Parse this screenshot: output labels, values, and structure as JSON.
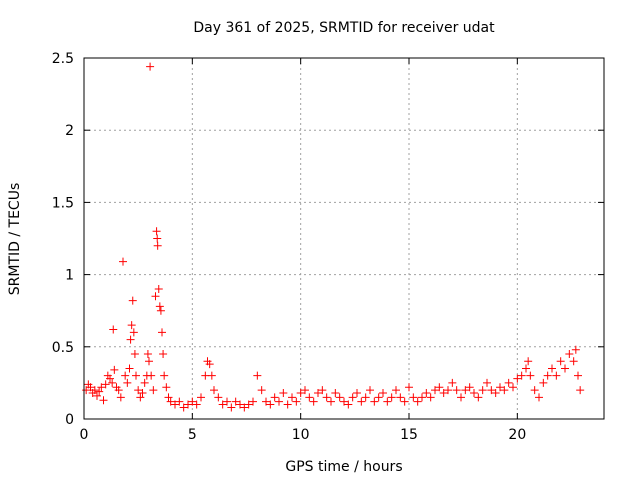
{
  "chart_data": {
    "type": "scatter",
    "title": "Day 361 of 2025, SRMTID for receiver udat",
    "xlabel": "GPS time / hours",
    "ylabel": "SRMTID / TECUs",
    "xlim": [
      0,
      24
    ],
    "ylim": [
      0,
      2.5
    ],
    "xticks": [
      0,
      5,
      10,
      15,
      20
    ],
    "xtick_labels": [
      "0",
      "5",
      "10",
      "15",
      "20"
    ],
    "yticks": [
      0,
      0.5,
      1,
      1.5,
      2,
      2.5
    ],
    "ytick_labels": [
      "0",
      "0.5",
      "1",
      "1.5",
      "2",
      "2.5"
    ],
    "grid": true,
    "marker": "plus",
    "color": "#ff0000",
    "series": [
      {
        "name": "SRMTID",
        "points": [
          [
            0.1,
            0.2
          ],
          [
            0.2,
            0.24
          ],
          [
            0.3,
            0.22
          ],
          [
            0.4,
            0.18
          ],
          [
            0.5,
            0.2
          ],
          [
            0.6,
            0.16
          ],
          [
            0.7,
            0.19
          ],
          [
            0.8,
            0.22
          ],
          [
            0.9,
            0.13
          ],
          [
            1.0,
            0.24
          ],
          [
            1.1,
            0.3
          ],
          [
            1.2,
            0.28
          ],
          [
            1.3,
            0.25
          ],
          [
            1.35,
            0.62
          ],
          [
            1.4,
            0.34
          ],
          [
            1.5,
            0.22
          ],
          [
            1.6,
            0.2
          ],
          [
            1.7,
            0.15
          ],
          [
            1.8,
            1.09
          ],
          [
            1.9,
            0.3
          ],
          [
            2.0,
            0.25
          ],
          [
            2.1,
            0.35
          ],
          [
            2.15,
            0.55
          ],
          [
            2.2,
            0.65
          ],
          [
            2.25,
            0.82
          ],
          [
            2.3,
            0.6
          ],
          [
            2.35,
            0.45
          ],
          [
            2.4,
            0.3
          ],
          [
            2.5,
            0.2
          ],
          [
            2.6,
            0.15
          ],
          [
            2.7,
            0.18
          ],
          [
            2.8,
            0.25
          ],
          [
            2.9,
            0.3
          ],
          [
            2.95,
            0.45
          ],
          [
            3.0,
            0.4
          ],
          [
            3.05,
            2.44
          ],
          [
            3.1,
            0.3
          ],
          [
            3.2,
            0.2
          ],
          [
            3.3,
            0.85
          ],
          [
            3.35,
            1.3
          ],
          [
            3.38,
            1.25
          ],
          [
            3.4,
            1.2
          ],
          [
            3.45,
            0.9
          ],
          [
            3.5,
            0.78
          ],
          [
            3.55,
            0.75
          ],
          [
            3.6,
            0.6
          ],
          [
            3.65,
            0.45
          ],
          [
            3.7,
            0.3
          ],
          [
            3.8,
            0.22
          ],
          [
            3.9,
            0.15
          ],
          [
            4.0,
            0.12
          ],
          [
            4.2,
            0.1
          ],
          [
            4.4,
            0.12
          ],
          [
            4.6,
            0.08
          ],
          [
            4.8,
            0.1
          ],
          [
            5.0,
            0.12
          ],
          [
            5.2,
            0.1
          ],
          [
            5.4,
            0.15
          ],
          [
            5.6,
            0.3
          ],
          [
            5.7,
            0.4
          ],
          [
            5.8,
            0.38
          ],
          [
            5.9,
            0.3
          ],
          [
            6.0,
            0.2
          ],
          [
            6.2,
            0.15
          ],
          [
            6.4,
            0.1
          ],
          [
            6.6,
            0.12
          ],
          [
            6.8,
            0.08
          ],
          [
            7.0,
            0.12
          ],
          [
            7.2,
            0.1
          ],
          [
            7.4,
            0.08
          ],
          [
            7.6,
            0.1
          ],
          [
            7.8,
            0.12
          ],
          [
            8.0,
            0.3
          ],
          [
            8.2,
            0.2
          ],
          [
            8.4,
            0.12
          ],
          [
            8.6,
            0.1
          ],
          [
            8.8,
            0.15
          ],
          [
            9.0,
            0.12
          ],
          [
            9.2,
            0.18
          ],
          [
            9.4,
            0.1
          ],
          [
            9.6,
            0.15
          ],
          [
            9.8,
            0.12
          ],
          [
            10.0,
            0.18
          ],
          [
            10.2,
            0.2
          ],
          [
            10.4,
            0.15
          ],
          [
            10.6,
            0.12
          ],
          [
            10.8,
            0.18
          ],
          [
            11.0,
            0.2
          ],
          [
            11.2,
            0.15
          ],
          [
            11.4,
            0.12
          ],
          [
            11.6,
            0.18
          ],
          [
            11.8,
            0.15
          ],
          [
            12.0,
            0.12
          ],
          [
            12.2,
            0.1
          ],
          [
            12.4,
            0.15
          ],
          [
            12.6,
            0.18
          ],
          [
            12.8,
            0.12
          ],
          [
            13.0,
            0.15
          ],
          [
            13.2,
            0.2
          ],
          [
            13.4,
            0.12
          ],
          [
            13.6,
            0.15
          ],
          [
            13.8,
            0.18
          ],
          [
            14.0,
            0.12
          ],
          [
            14.2,
            0.15
          ],
          [
            14.4,
            0.2
          ],
          [
            14.6,
            0.15
          ],
          [
            14.8,
            0.12
          ],
          [
            15.0,
            0.22
          ],
          [
            15.2,
            0.15
          ],
          [
            15.4,
            0.12
          ],
          [
            15.6,
            0.15
          ],
          [
            15.8,
            0.18
          ],
          [
            16.0,
            0.15
          ],
          [
            16.2,
            0.2
          ],
          [
            16.4,
            0.22
          ],
          [
            16.6,
            0.18
          ],
          [
            16.8,
            0.2
          ],
          [
            17.0,
            0.25
          ],
          [
            17.2,
            0.2
          ],
          [
            17.4,
            0.15
          ],
          [
            17.6,
            0.2
          ],
          [
            17.8,
            0.22
          ],
          [
            18.0,
            0.18
          ],
          [
            18.2,
            0.15
          ],
          [
            18.4,
            0.2
          ],
          [
            18.6,
            0.25
          ],
          [
            18.8,
            0.2
          ],
          [
            19.0,
            0.18
          ],
          [
            19.2,
            0.22
          ],
          [
            19.4,
            0.2
          ],
          [
            19.6,
            0.25
          ],
          [
            19.8,
            0.22
          ],
          [
            20.0,
            0.28
          ],
          [
            20.2,
            0.3
          ],
          [
            20.4,
            0.35
          ],
          [
            20.5,
            0.4
          ],
          [
            20.6,
            0.3
          ],
          [
            20.8,
            0.2
          ],
          [
            21.0,
            0.15
          ],
          [
            21.2,
            0.25
          ],
          [
            21.4,
            0.3
          ],
          [
            21.6,
            0.35
          ],
          [
            21.8,
            0.3
          ],
          [
            22.0,
            0.4
          ],
          [
            22.2,
            0.35
          ],
          [
            22.4,
            0.45
          ],
          [
            22.6,
            0.4
          ],
          [
            22.7,
            0.48
          ],
          [
            22.8,
            0.3
          ],
          [
            22.9,
            0.2
          ]
        ]
      }
    ]
  }
}
